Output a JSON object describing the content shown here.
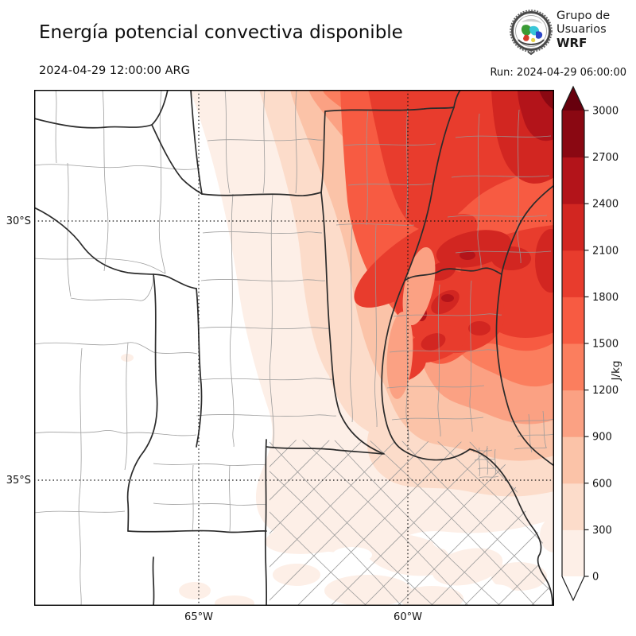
{
  "header": {
    "title": "Energía potencial convectiva disponible",
    "logo": {
      "line1": "Grupo de",
      "line2": "Usuarios",
      "line3": "WRF"
    },
    "valid_time": "2024-04-29 12:00:00 ARG",
    "run_label": "Run: 2024-04-29 06:00:00"
  },
  "chart_data": {
    "type": "heatmap",
    "variable": "CAPE (Energía potencial convectiva disponible)",
    "units": "J/kg",
    "valid_time": "2024-04-29 12:00:00 ARG",
    "model_run": "2024-04-29 06:00:00",
    "x_axis": {
      "ticks": [
        "65°W",
        "60°W"
      ]
    },
    "y_axis": {
      "ticks": [
        "30°S",
        "35°S"
      ]
    },
    "colorbar": {
      "label": "J/kg",
      "ticks": [
        0,
        300,
        600,
        900,
        1200,
        1500,
        1800,
        2100,
        2400,
        2700,
        3000
      ],
      "colors": [
        "#fdefe7",
        "#fcdcca",
        "#fbc3a8",
        "#fba183",
        "#fb7e5e",
        "#f75b42",
        "#e83c2d",
        "#d22621",
        "#b3141a",
        "#8a0812"
      ],
      "over_color": "#67000d",
      "under_color": "#ffffff",
      "extend": "both"
    },
    "field_summary": "CAPE near 0 J/kg over western Argentina, increasing toward the northeast; broad 1500-2100 J/kg across the northeast, maxima of 2400-3000+ J/kg at the NE corner and 2100-2700 J/kg pockets near 59-61W / 30-31.5S; below 600 J/kg over Buenos Aires and the southeast."
  }
}
